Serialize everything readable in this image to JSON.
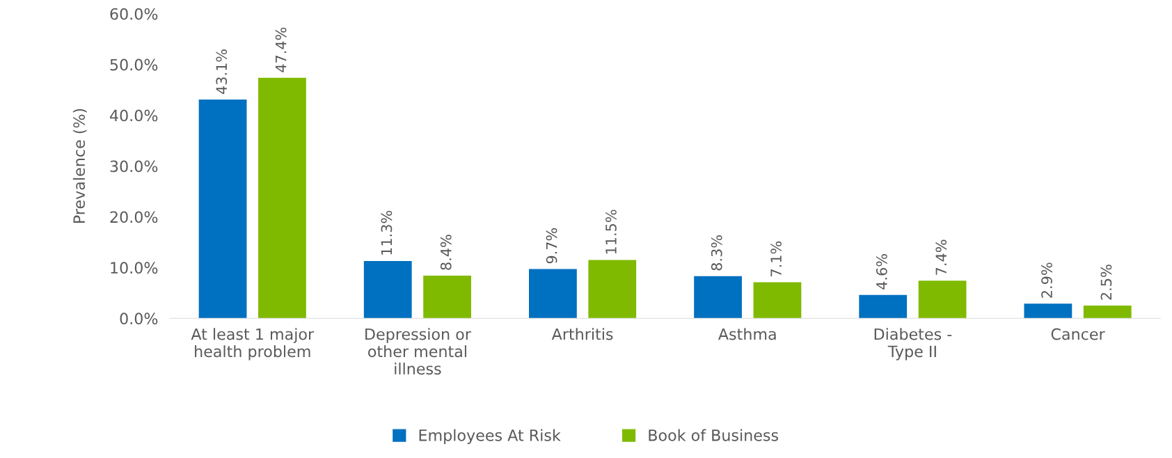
{
  "chart_data": {
    "type": "bar",
    "ylabel": "Prevalence (%)",
    "categories": [
      "At least 1 major\nhealth problem",
      "Depression or\nother mental\nillness",
      "Arthritis",
      "Asthma",
      "Diabetes -\nType II",
      "Cancer"
    ],
    "series": [
      {
        "name": "Employees At Risk",
        "color": "#0070c0",
        "values": [
          43.1,
          11.3,
          9.7,
          8.3,
          4.6,
          2.9
        ],
        "value_labels": [
          "43.1%",
          "11.3%",
          "9.7%",
          "8.3%",
          "4.6%",
          "2.9%"
        ]
      },
      {
        "name": "Book of Business",
        "color": "#7fba00",
        "values": [
          47.4,
          8.4,
          11.5,
          7.1,
          7.4,
          2.5
        ],
        "value_labels": [
          "47.4%",
          "8.4%",
          "11.5%",
          "7.1%",
          "7.4%",
          "2.5%"
        ]
      }
    ],
    "ylim": [
      0,
      60
    ],
    "yticks": [
      {
        "value": 0,
        "label": "0.0%"
      },
      {
        "value": 10,
        "label": "10.0%"
      },
      {
        "value": 20,
        "label": "20.0%"
      },
      {
        "value": 30,
        "label": "30.0%"
      },
      {
        "value": 40,
        "label": "40.0%"
      },
      {
        "value": 50,
        "label": "50.0%"
      },
      {
        "value": 60,
        "label": "60.0%"
      }
    ],
    "grid": false,
    "legend": "bottom"
  }
}
